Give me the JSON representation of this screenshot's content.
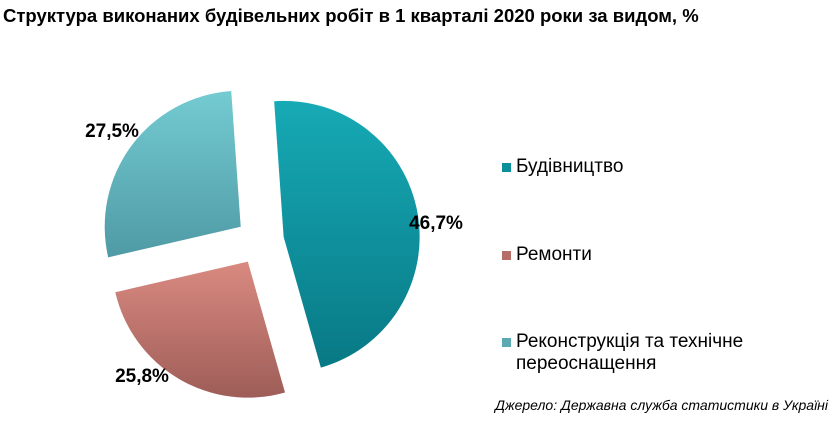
{
  "title": "Структура виконаних будівельних робіт в 1 кварталі 2020 роки за видом, %",
  "source": "Джерело: Державна служба статистики в Україні",
  "chart_data": {
    "type": "pie",
    "title": "Структура виконаних будівельних робіт в 1 кварталі 2020 роки за видом, %",
    "categories": [
      "Будівництво",
      "Ремонти",
      "Реконструкція та технічне переоснащення"
    ],
    "values": [
      46.7,
      25.8,
      27.5
    ],
    "data_labels": [
      "46,7%",
      "25,8%",
      "27,5%"
    ],
    "colors": [
      "#0a8f9b",
      "#b86e68",
      "#5aa9b3"
    ],
    "legend_position": "right",
    "exploded": true
  },
  "legend": [
    {
      "label": "Будівництво",
      "color": "#0a8f9b"
    },
    {
      "label": "Ремонти",
      "color": "#b86e68"
    },
    {
      "label": "Реконструкція та технічне переоснащення",
      "color": "#5aa9b3"
    }
  ]
}
